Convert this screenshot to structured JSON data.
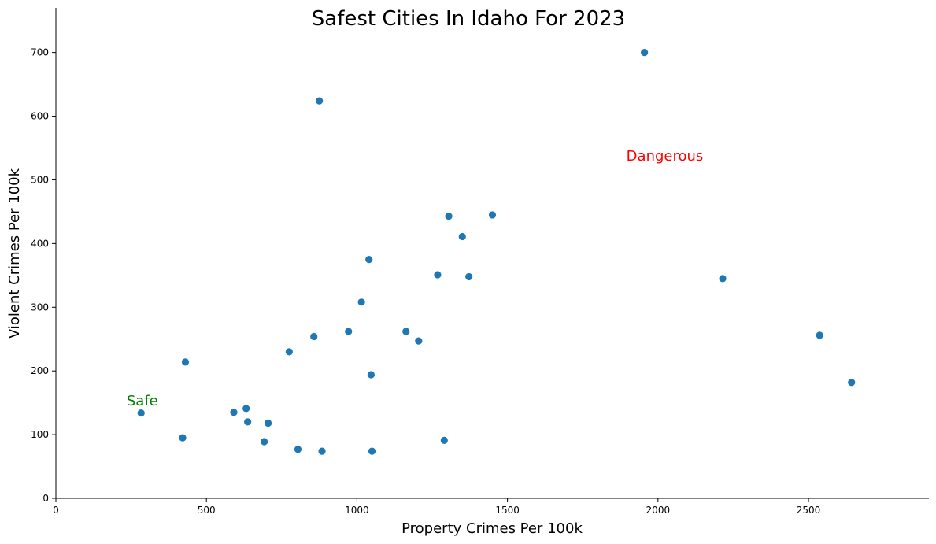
{
  "chart_data": {
    "type": "scatter",
    "title": "Safest Cities In Idaho For 2023",
    "xlabel": "Property Crimes Per 100k",
    "ylabel": "Violent Crimes Per 100k",
    "xlim": [
      0,
      2900
    ],
    "ylim": [
      0,
      770
    ],
    "xticks": [
      0,
      500,
      1000,
      1500,
      2000,
      2500
    ],
    "yticks": [
      0,
      100,
      200,
      300,
      400,
      500,
      600,
      700
    ],
    "grid": false,
    "marker_color": "#1f77b4",
    "annotations": [
      {
        "text": "Safe",
        "x": 235,
        "y": 146,
        "color": "#008000"
      },
      {
        "text": "Dangerous",
        "x": 1895,
        "y": 530,
        "color": "#ff0000"
      }
    ],
    "points": [
      {
        "x": 1955,
        "y": 700
      },
      {
        "x": 875,
        "y": 624
      },
      {
        "x": 1450,
        "y": 445
      },
      {
        "x": 1305,
        "y": 443
      },
      {
        "x": 1350,
        "y": 411
      },
      {
        "x": 1040,
        "y": 375
      },
      {
        "x": 1268,
        "y": 351
      },
      {
        "x": 1372,
        "y": 348
      },
      {
        "x": 2215,
        "y": 345
      },
      {
        "x": 1015,
        "y": 308
      },
      {
        "x": 972,
        "y": 262
      },
      {
        "x": 1163,
        "y": 262
      },
      {
        "x": 2537,
        "y": 256
      },
      {
        "x": 857,
        "y": 254
      },
      {
        "x": 1205,
        "y": 247
      },
      {
        "x": 775,
        "y": 230
      },
      {
        "x": 430,
        "y": 214
      },
      {
        "x": 1047,
        "y": 194
      },
      {
        "x": 2643,
        "y": 182
      },
      {
        "x": 632,
        "y": 141
      },
      {
        "x": 591,
        "y": 135
      },
      {
        "x": 283,
        "y": 134
      },
      {
        "x": 637,
        "y": 120
      },
      {
        "x": 705,
        "y": 118
      },
      {
        "x": 421,
        "y": 95
      },
      {
        "x": 1290,
        "y": 91
      },
      {
        "x": 692,
        "y": 89
      },
      {
        "x": 804,
        "y": 77
      },
      {
        "x": 884,
        "y": 74
      },
      {
        "x": 1050,
        "y": 74
      }
    ]
  }
}
